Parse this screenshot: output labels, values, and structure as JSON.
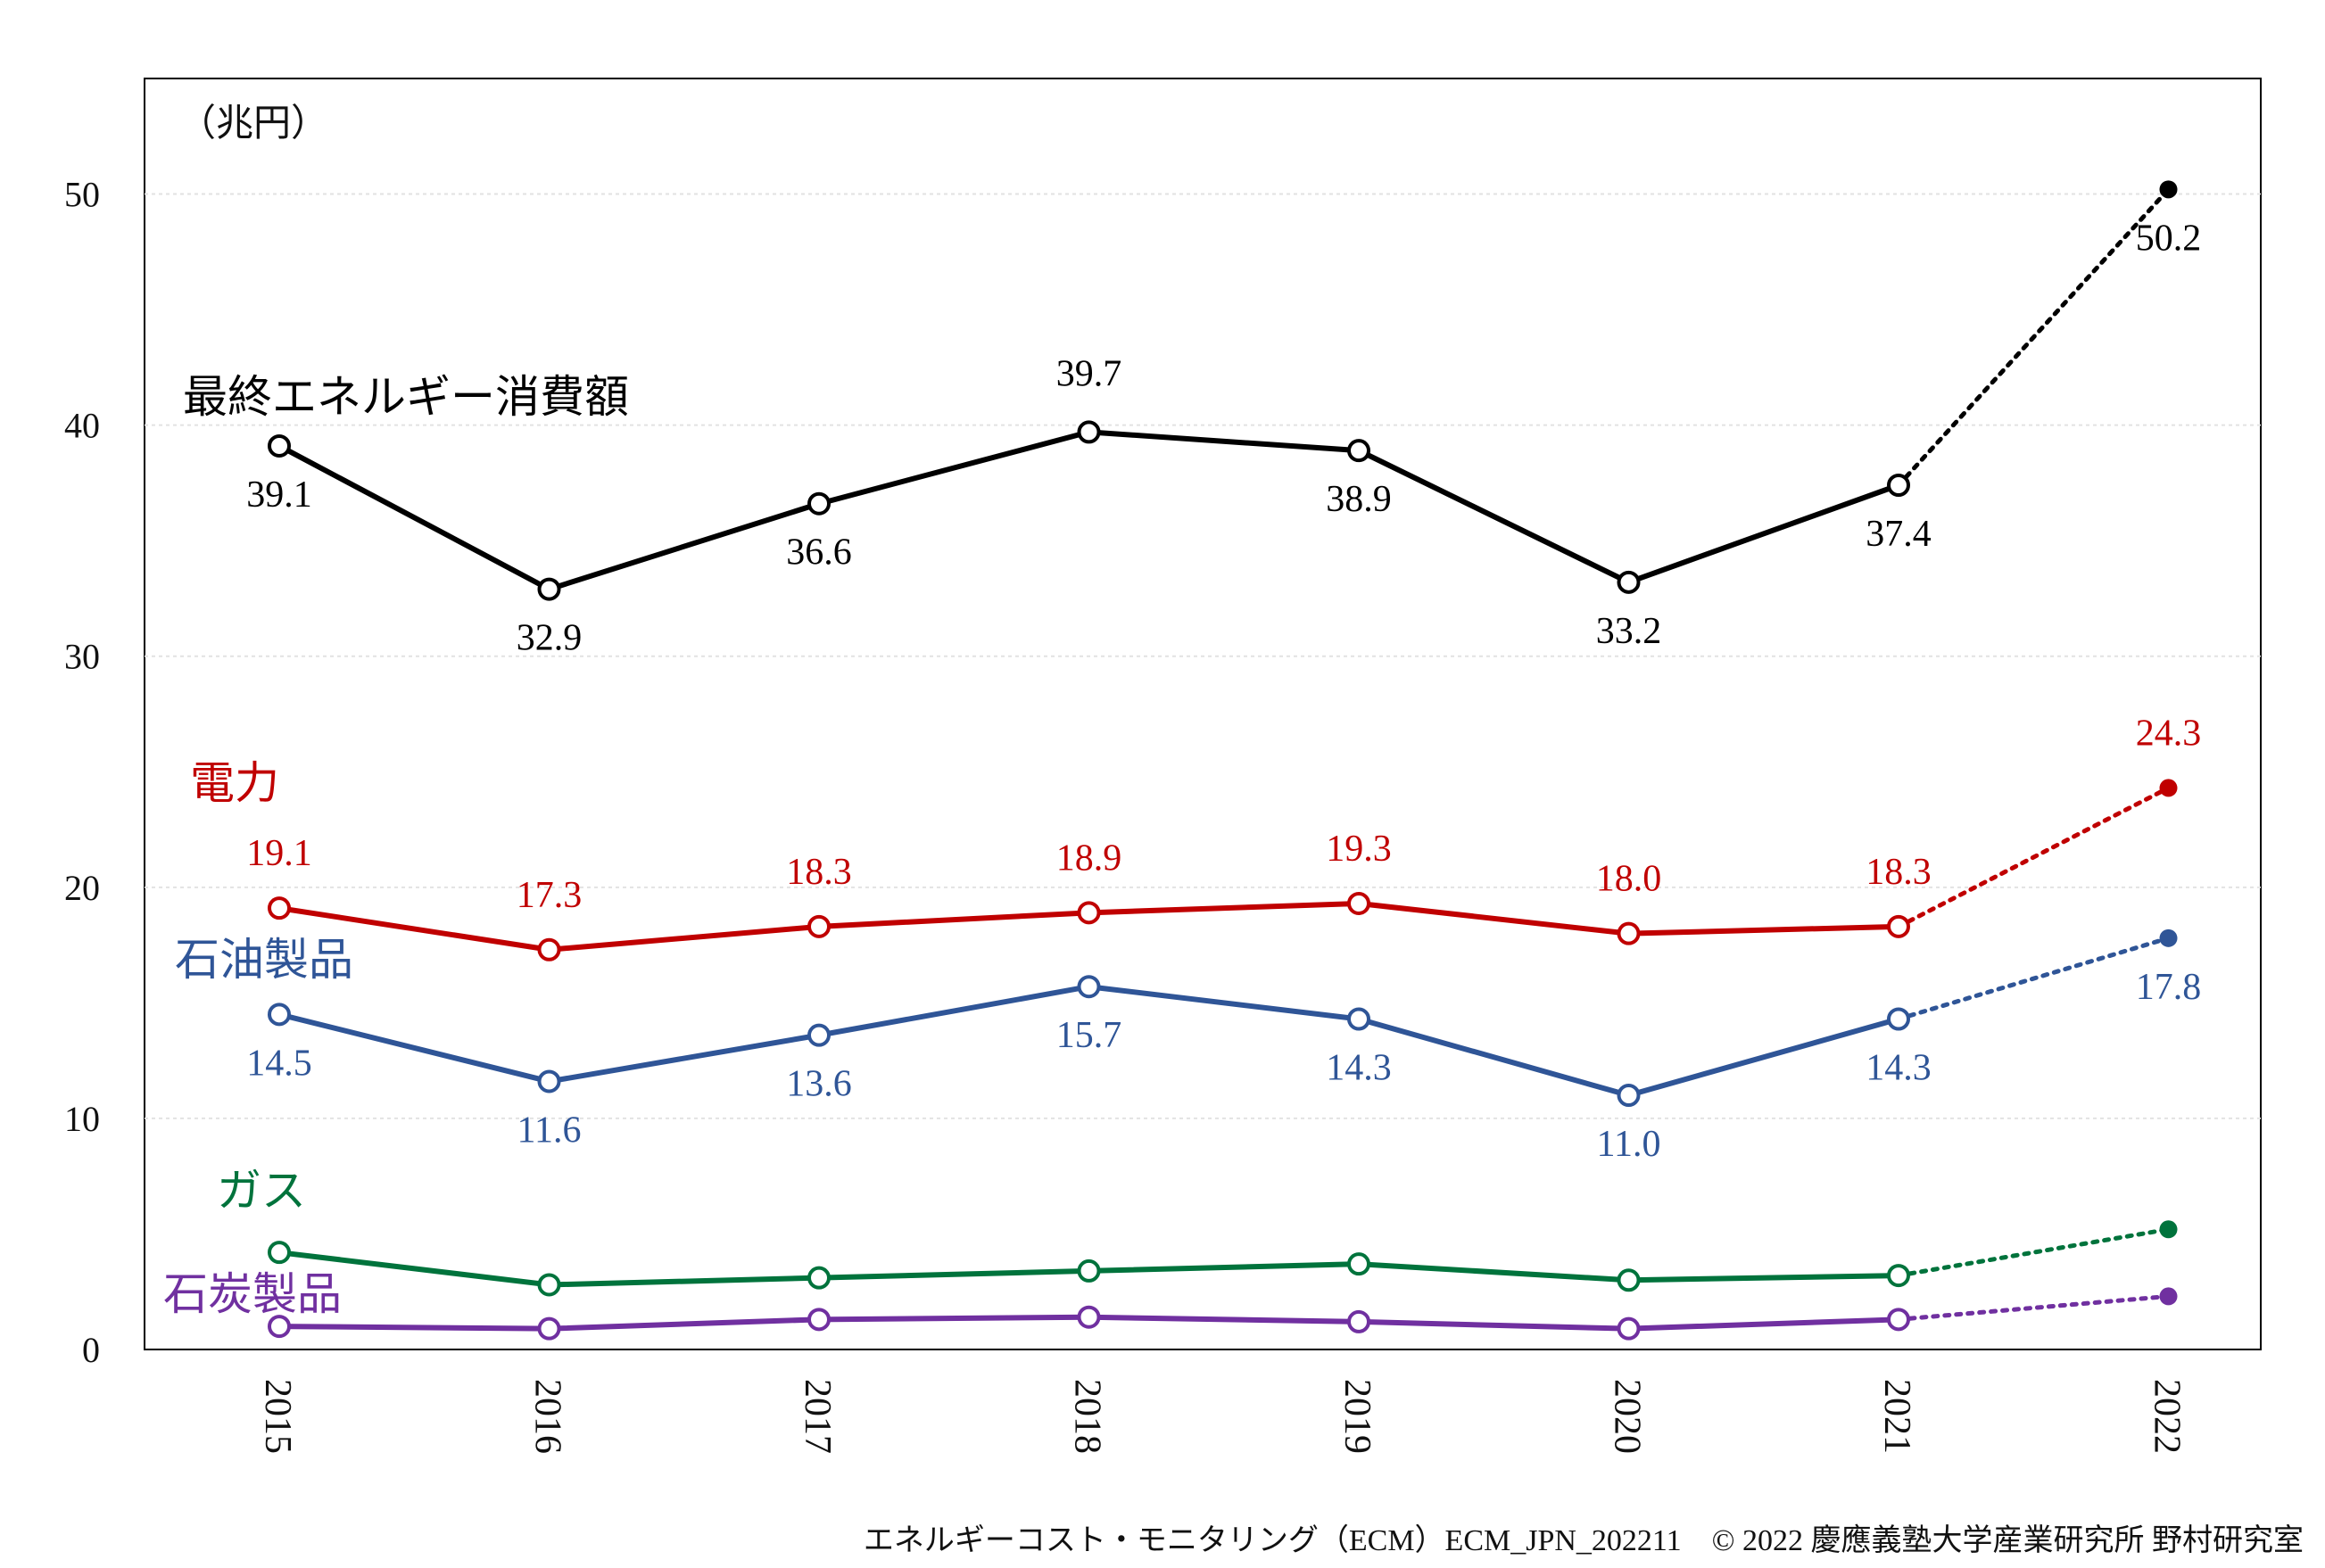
{
  "chart_data": {
    "type": "line",
    "unit_label": "（兆円）",
    "x": [
      "2015",
      "2016",
      "2017",
      "2018",
      "2019",
      "2020",
      "2021",
      "2022"
    ],
    "ylim": [
      0,
      55
    ],
    "yticks": [
      "0",
      "10",
      "20",
      "30",
      "40",
      "50"
    ],
    "grid": true,
    "series": [
      {
        "name": "最終エネルギー消費額",
        "color": "#000000",
        "values": [
          39.1,
          32.9,
          36.6,
          39.7,
          38.9,
          33.2,
          37.4,
          50.2
        ],
        "labels": [
          "39.1",
          "32.9",
          "36.6",
          "39.7",
          "38.9",
          "33.2",
          "37.4",
          "50.2"
        ]
      },
      {
        "name": "電力",
        "color": "#c00000",
        "values": [
          19.1,
          17.3,
          18.3,
          18.9,
          19.3,
          18.0,
          18.3,
          24.3
        ],
        "labels": [
          "19.1",
          "17.3",
          "18.3",
          "18.9",
          "19.3",
          "18.0",
          "18.3",
          "24.3"
        ]
      },
      {
        "name": "石油製品",
        "color": "#2f5597",
        "values": [
          14.5,
          11.6,
          13.6,
          15.7,
          14.3,
          11.0,
          14.3,
          17.8
        ],
        "labels": [
          "14.5",
          "11.6",
          "13.6",
          "15.7",
          "14.3",
          "11.0",
          "14.3",
          "17.8"
        ]
      },
      {
        "name": "ガス",
        "color": "#00733c",
        "values": [
          4.2,
          2.8,
          3.1,
          3.4,
          3.7,
          3.0,
          3.2,
          5.2
        ],
        "labels": []
      },
      {
        "name": "石炭製品",
        "color": "#7030a0",
        "values": [
          1.0,
          0.9,
          1.3,
          1.4,
          1.2,
          0.9,
          1.3,
          2.3
        ],
        "labels": []
      }
    ],
    "projection_index": 7
  },
  "footer": "エネルギーコスト・モニタリング（ECM）ECM_JPN_202211　© 2022 慶應義塾大学産業研究所 野村研究室"
}
